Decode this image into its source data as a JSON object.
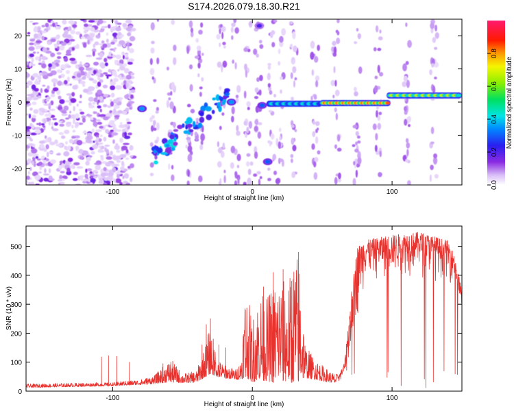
{
  "figure_title": "S174.2026.079.18.30.R21",
  "colors": {
    "snr_line": "#e8322e",
    "spectrogram_low": "#7a1fe6",
    "axis": "#000000"
  },
  "chart_data": [
    {
      "type": "heatmap",
      "title": "S174.2026.079.18.30.R21",
      "xlabel": "Height of straight line (km)",
      "ylabel": "Frequency (Hz)",
      "xlim": [
        -162,
        150
      ],
      "ylim": [
        -25,
        25
      ],
      "x_ticks": [
        "-100",
        "0",
        "100"
      ],
      "x_tick_values": [
        -100,
        0,
        100
      ],
      "y_ticks": [
        "20",
        "10",
        "0",
        "-10",
        "-20"
      ],
      "y_tick_values": [
        20,
        10,
        0,
        -10,
        -20
      ],
      "colorbar": {
        "label": "Normalized spectral amplitude",
        "ticks": [
          "0.0",
          "0.2",
          "0.4",
          "0.6",
          "0.8"
        ],
        "tick_values": [
          0.0,
          0.2,
          0.4,
          0.6,
          0.8
        ],
        "range": [
          0,
          1
        ],
        "colormap": "rainbow (white-violet-blue-cyan-green-yellow-orange-red-magenta)"
      },
      "features": [
        {
          "name": "noise_region",
          "x_range": [
            -162,
            -85
          ],
          "y_range": [
            -25,
            25
          ],
          "amplitude": 0.1
        },
        {
          "name": "spot",
          "x": -79,
          "y": -2,
          "amplitude": 0.35
        },
        {
          "name": "descending_track",
          "x_range": [
            -72,
            -18
          ],
          "y_range": [
            -17,
            2
          ],
          "amplitude": 0.3
        },
        {
          "name": "spot",
          "x": -15,
          "y": 0,
          "amplitude": 0.35
        },
        {
          "name": "spot",
          "x": 5,
          "y": 23,
          "amplitude": 0.2
        },
        {
          "name": "spot",
          "x": 7,
          "y": -1,
          "amplitude": 0.3
        },
        {
          "name": "spot",
          "x": 11,
          "y": -18,
          "amplitude": 0.3
        },
        {
          "name": "tone_0hz",
          "x_range": [
            12,
            48
          ],
          "y": -0.5,
          "amplitude": 0.45
        },
        {
          "name": "tone_0hz",
          "x_range": [
            50,
            97
          ],
          "y": -0.3,
          "amplitude": 0.85
        },
        {
          "name": "tone_2hz",
          "x_range": [
            98,
            148
          ],
          "y": 2,
          "amplitude": 0.7
        }
      ]
    },
    {
      "type": "line",
      "xlabel": "Height of straight line (km)",
      "ylabel": "SNR (10 * v/v)",
      "xlim": [
        -162,
        150
      ],
      "ylim": [
        0,
        570
      ],
      "x_ticks": [
        "-100",
        "0",
        "100"
      ],
      "x_tick_values": [
        -100,
        0,
        100
      ],
      "y_ticks": [
        "0",
        "100",
        "200",
        "300",
        "400",
        "500"
      ],
      "y_tick_values": [
        0,
        100,
        200,
        300,
        400,
        500
      ],
      "series": [
        {
          "name": "SNR",
          "envelope_x": [
            -162,
            -130,
            -100,
            -92,
            -80,
            -70,
            -62,
            -58,
            -50,
            -40,
            -35,
            -30,
            -25,
            -20,
            -12,
            -8,
            -5,
            0,
            5,
            10,
            15,
            20,
            25,
            30,
            33,
            38,
            45,
            55,
            62,
            66,
            70,
            75,
            80,
            100,
            120,
            140,
            145,
            147,
            150
          ],
          "envelope_y": [
            25,
            28,
            30,
            35,
            40,
            55,
            95,
            110,
            60,
            70,
            140,
            230,
            110,
            90,
            75,
            110,
            370,
            250,
            350,
            320,
            380,
            410,
            360,
            470,
            480,
            160,
            110,
            70,
            55,
            100,
            300,
            500,
            520,
            540,
            550,
            520,
            470,
            420,
            350
          ],
          "baseline_y": [
            12,
            15,
            18,
            20,
            22,
            25,
            30,
            30,
            28,
            30,
            45,
            60,
            50,
            45,
            40,
            40,
            50,
            30,
            40,
            35,
            30,
            40,
            30,
            30,
            35,
            45,
            40,
            30,
            25,
            30,
            60,
            200,
            350,
            370,
            380,
            360,
            350,
            280,
            260
          ],
          "spike_x": [
            -108,
            -103,
            -97,
            -88,
            -64,
            -36,
            -33,
            -30,
            -28,
            -24,
            -19,
            -5,
            8,
            15,
            22,
            28,
            33
          ],
          "spike_y": [
            118,
            122,
            120,
            100,
            95,
            160,
            230,
            250,
            180,
            160,
            150,
            280,
            360,
            410,
            420,
            380,
            480
          ]
        }
      ]
    }
  ]
}
